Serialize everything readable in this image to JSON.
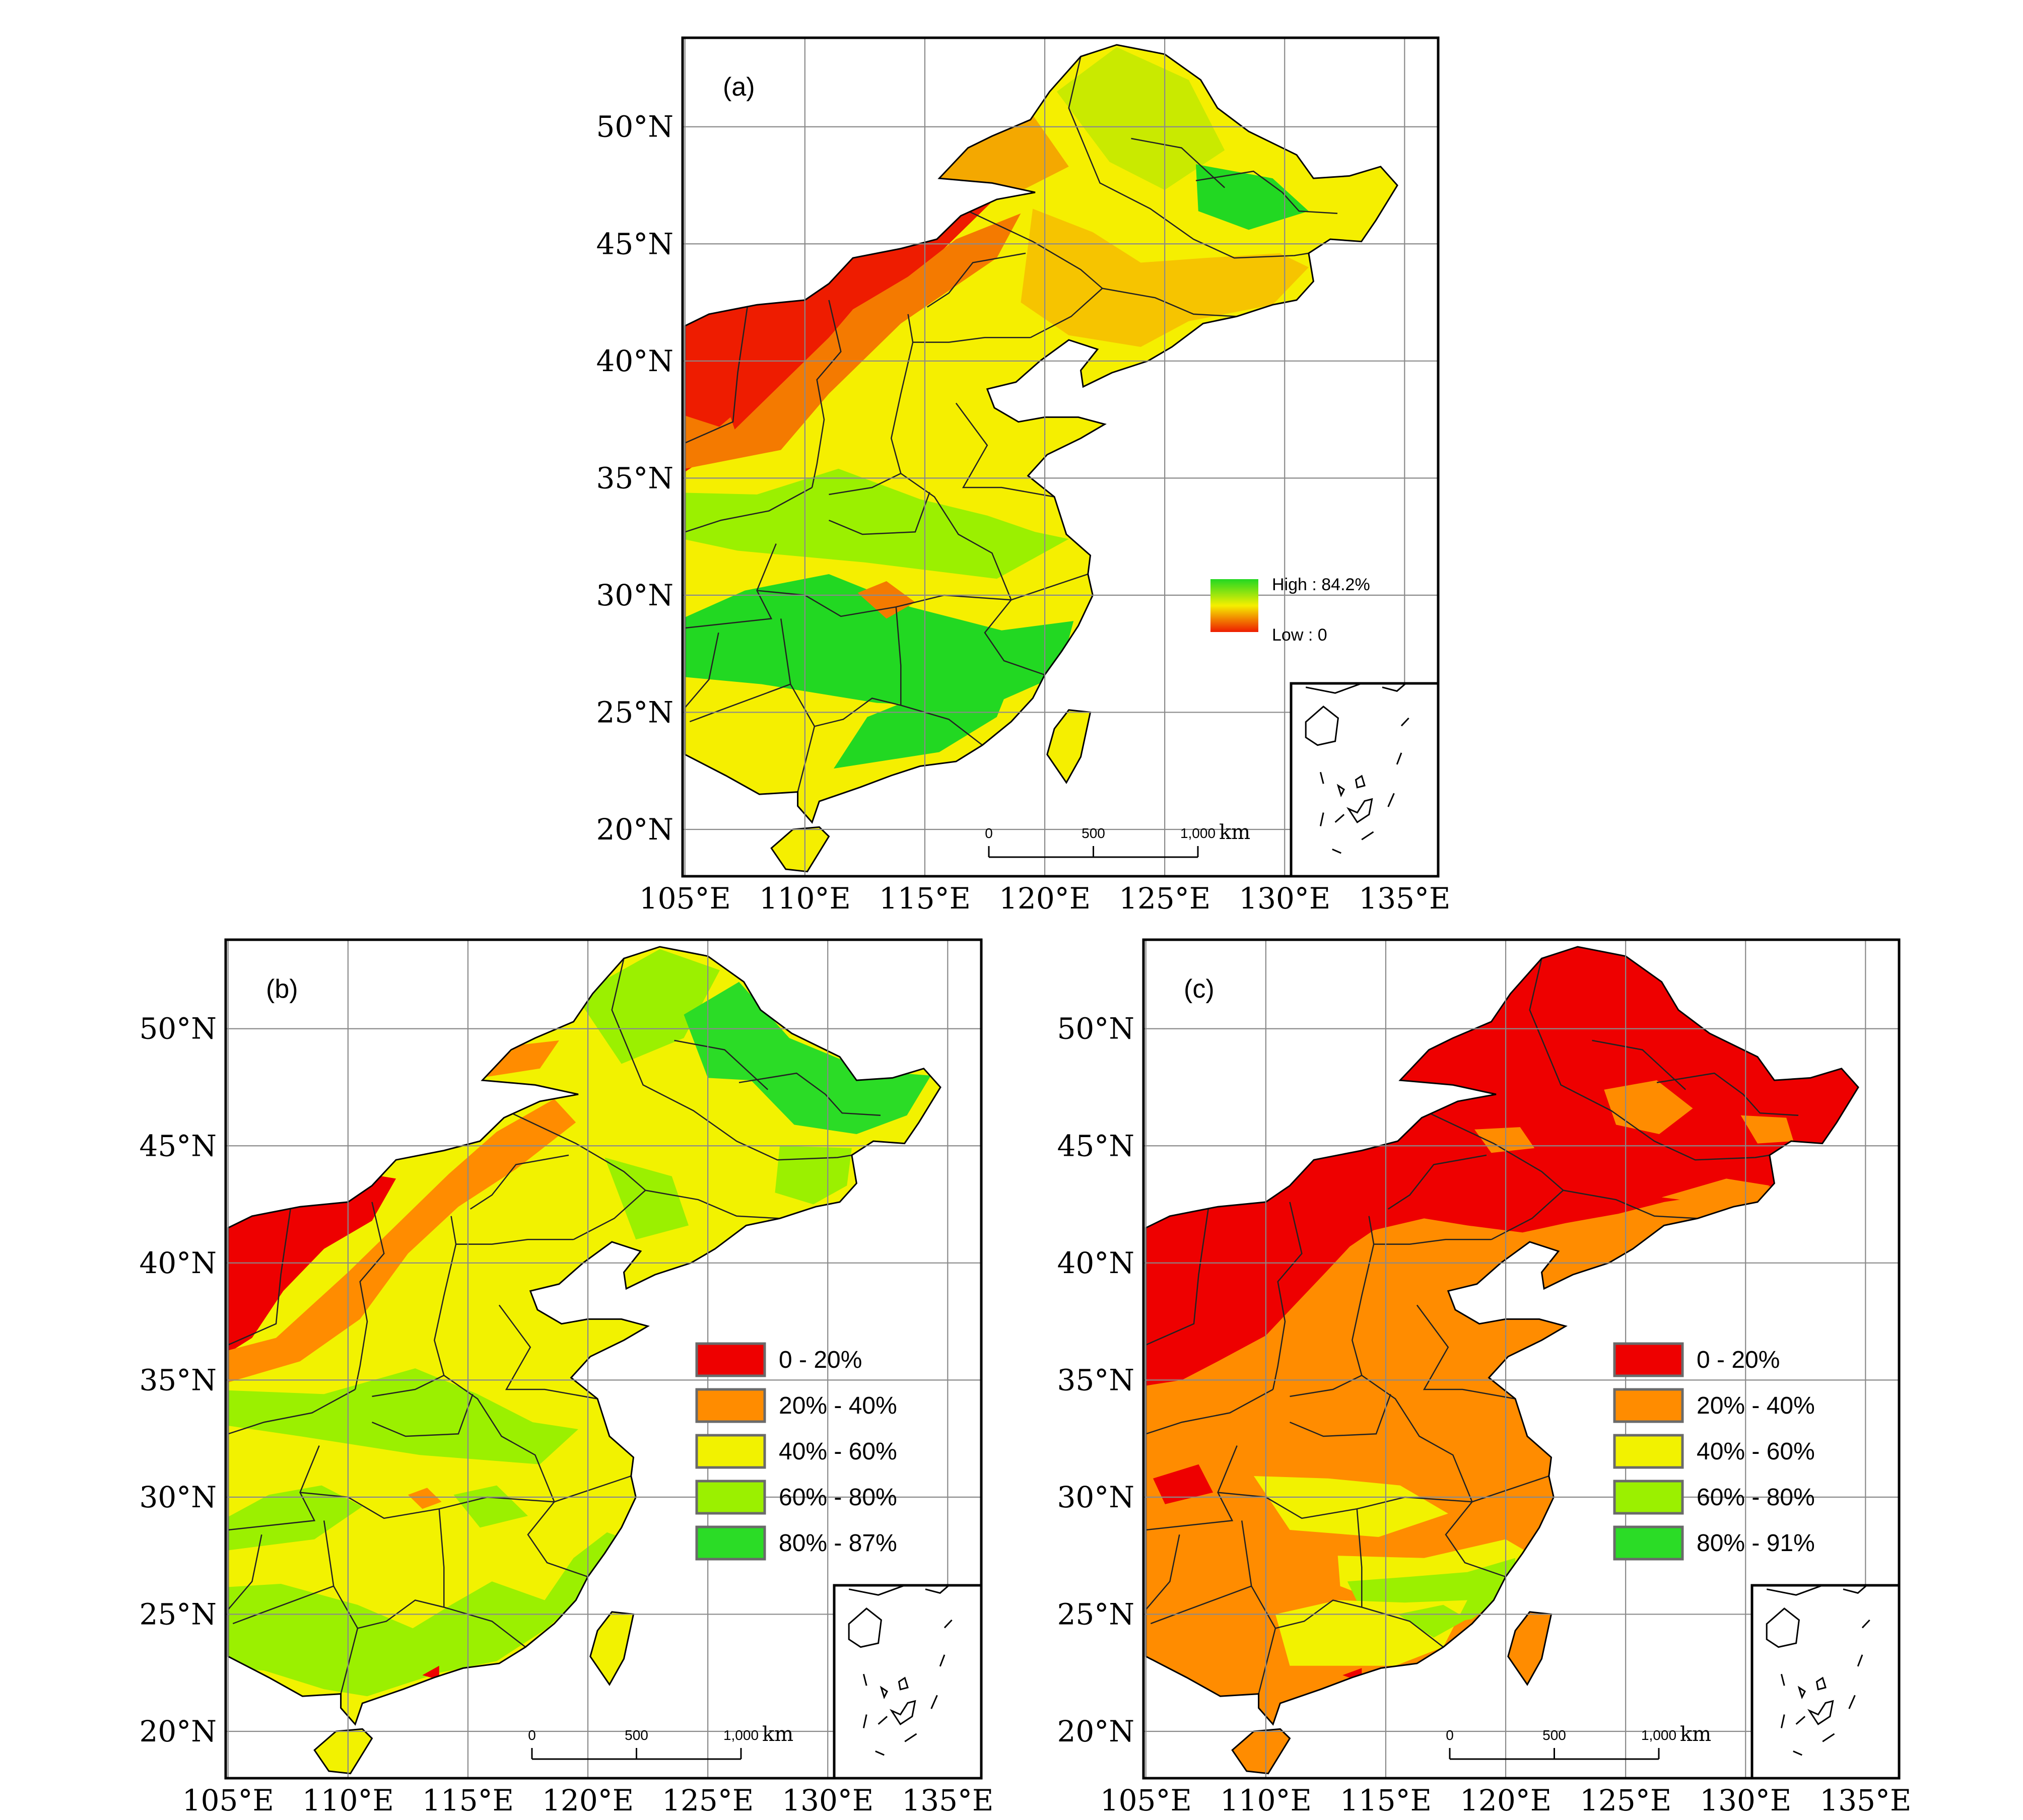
{
  "colors": {
    "red": "#ee0000",
    "orange": "#ff8c00",
    "yellow": "#f2f200",
    "light_green": "#9bf000",
    "green": "#2bdc26",
    "ramp_high": "#22d822",
    "ramp_mid": "#f5ef00",
    "ramp_low": "#ee1c00"
  },
  "axis": {
    "lat_ticks": [
      "50°N",
      "45°N",
      "40°N",
      "35°N",
      "30°N",
      "25°N",
      "20°N"
    ],
    "lon_ticks": [
      "105°E",
      "110°E",
      "115°E",
      "120°E",
      "125°E",
      "130°E",
      "135°E"
    ]
  },
  "scale_bar": {
    "labels": [
      "0",
      "500",
      "1,000"
    ],
    "unit": "km"
  },
  "panels": [
    {
      "id": "a",
      "label": "(a)",
      "legend_type": "gradient",
      "legend": {
        "high": "High : 84.2%",
        "low": "Low : 0"
      }
    },
    {
      "id": "b",
      "label": "(b)",
      "legend_type": "classes",
      "legend": [
        {
          "label": "0 - 20%",
          "color": "#ee0000"
        },
        {
          "label": "20% - 40%",
          "color": "#ff8c00"
        },
        {
          "label": "40% - 60%",
          "color": "#f2f200"
        },
        {
          "label": "60% - 80%",
          "color": "#9bf000"
        },
        {
          "label": "80% - 87%",
          "color": "#2bdc26"
        }
      ]
    },
    {
      "id": "c",
      "label": "(c)",
      "legend_type": "classes",
      "legend": [
        {
          "label": "0 - 20%",
          "color": "#ee0000"
        },
        {
          "label": "20% - 40%",
          "color": "#ff8c00"
        },
        {
          "label": "40% - 60%",
          "color": "#f2f200"
        },
        {
          "label": "60% - 80%",
          "color": "#9bf000"
        },
        {
          "label": "80% - 91%",
          "color": "#2bdc26"
        }
      ]
    }
  ]
}
